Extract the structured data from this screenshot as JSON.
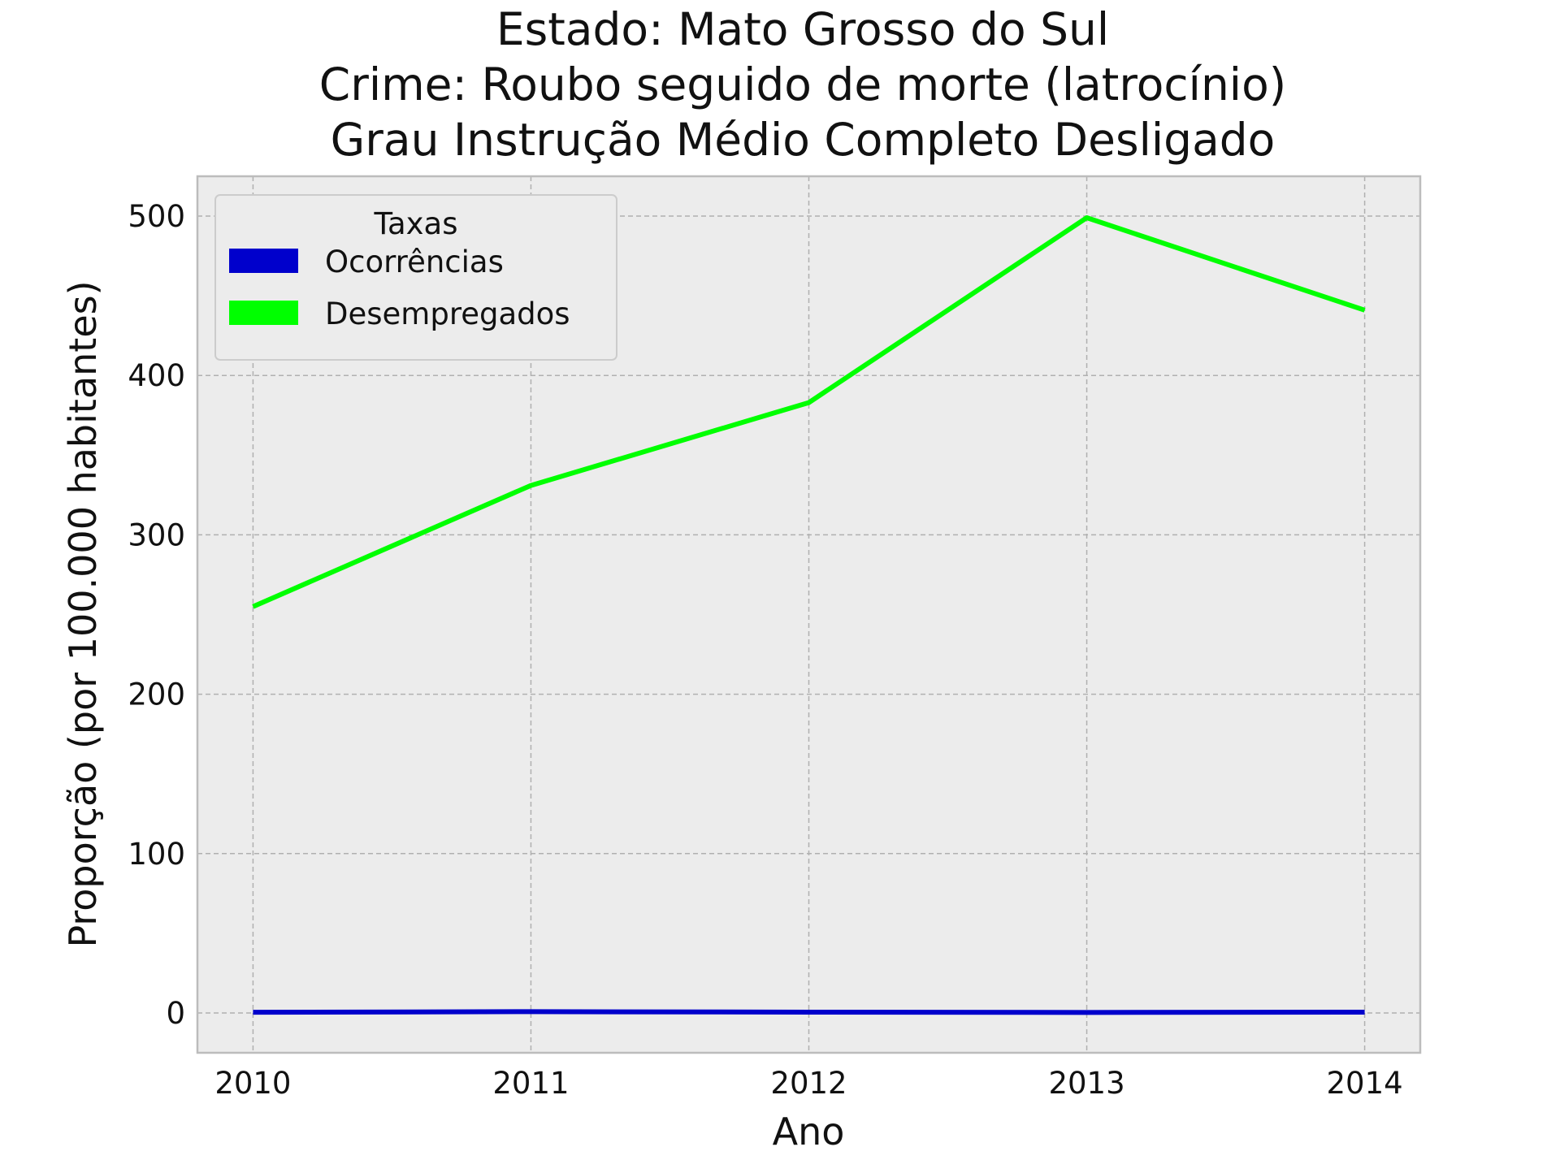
{
  "chart_data": {
    "type": "line",
    "title_lines": [
      "Estado: Mato Grosso do Sul",
      "Crime: Roubo seguido de morte (latrocínio)",
      "Grau Instrução  Médio Completo   Desligado"
    ],
    "xlabel": "Ano",
    "ylabel": "Proporção (por 100.000 habitantes)",
    "x": [
      "2010",
      "2011",
      "2012",
      "2013",
      "2014"
    ],
    "xlim": [
      2009.8,
      2014.2
    ],
    "ylim": [
      -25,
      525
    ],
    "yticks": [
      "0",
      "100",
      "200",
      "300",
      "400",
      "500"
    ],
    "grid": true,
    "legend": {
      "title": "Taxas",
      "position": "top-left"
    },
    "series": [
      {
        "name": "Ocorrências",
        "color": "#0000cc",
        "values": [
          0.4,
          0.8,
          0.5,
          0.3,
          0.5
        ]
      },
      {
        "name": "Desempregados",
        "color": "#00ff00",
        "values": [
          255,
          331,
          383,
          499,
          441
        ]
      }
    ],
    "colors": {
      "plot_background": "#ececec",
      "grid": "#b0b0b0",
      "frame": "#bcbcbc"
    }
  }
}
